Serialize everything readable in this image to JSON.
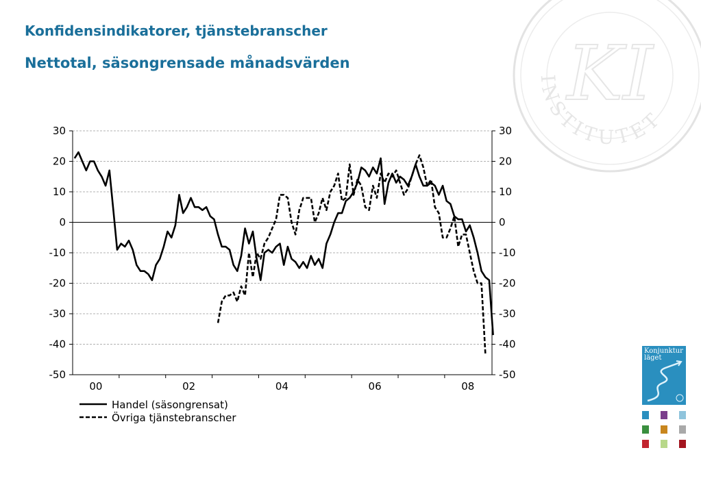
{
  "header": {
    "title": "Konfidensindikatorer, tjänstebranscher",
    "subtitle": "Nettotal, säsongrensade månadsvärden"
  },
  "watermark": {
    "text": "INSTITUTET",
    "monogram": "KI"
  },
  "badge": {
    "title": "Konjunktur läget",
    "color": "#2a8fbf",
    "swatch_colors": [
      "#2a8fbf",
      "#7b3f8c",
      "#8fc4dc",
      "#3a8f3f",
      "#c8861e",
      "#a9a9a9",
      "#c2242f",
      "#b8d88a",
      "#a3151f"
    ]
  },
  "chart_data": {
    "type": "line",
    "title": "",
    "xlabel": "",
    "ylabel": "",
    "ylim": [
      -50,
      30
    ],
    "yticks": [
      30,
      20,
      10,
      0,
      -10,
      -20,
      -30,
      -40,
      -50
    ],
    "x_tick_labels": [
      "00",
      "02",
      "04",
      "06",
      "08"
    ],
    "x_start": "2000-01",
    "grid": true,
    "legend_position": "bottom-left",
    "series": [
      {
        "name": "Handel (säsongrensat)",
        "style": "solid",
        "start": "2000-01",
        "values": [
          21,
          23,
          20,
          17,
          20,
          20,
          17,
          15,
          12,
          17,
          4,
          -9,
          -7,
          -8,
          -6,
          -9,
          -14,
          -16,
          -16,
          -17,
          -19,
          -14,
          -12,
          -8,
          -3,
          -5,
          -1,
          9,
          3,
          5,
          8,
          5,
          5,
          4,
          5,
          2,
          1,
          -4,
          -8,
          -8,
          -9,
          -14,
          -16,
          -11,
          -2,
          -7,
          -3,
          -12,
          -19,
          -10,
          -9,
          -10,
          -8,
          -7,
          -14,
          -8,
          -12,
          -13,
          -15,
          -13,
          -15,
          -11,
          -14,
          -12,
          -15,
          -7,
          -4,
          0,
          3,
          3,
          7,
          8,
          10,
          13,
          18,
          17,
          15,
          18,
          16,
          21,
          6,
          13,
          16,
          13,
          15,
          14,
          12,
          15,
          19,
          15,
          12,
          12,
          13,
          12,
          9,
          12,
          7,
          6,
          2,
          1,
          1,
          -3,
          -1,
          -5,
          -10,
          -16,
          -18,
          -19,
          -37
        ]
      },
      {
        "name": "Övriga tjänstebranscher",
        "style": "dashed",
        "start": "2003-02",
        "values": [
          -33,
          -26,
          -24,
          -24,
          -23,
          -26,
          -21,
          -24,
          -10,
          -18,
          -10,
          -12,
          -7,
          -5,
          -2,
          1,
          9,
          9,
          8,
          0,
          -4,
          4,
          8,
          8,
          8,
          0,
          3,
          8,
          4,
          10,
          12,
          16,
          7,
          8,
          19,
          9,
          14,
          12,
          5,
          4,
          12,
          8,
          16,
          13,
          16,
          15,
          17,
          13,
          9,
          11,
          15,
          19,
          22,
          18,
          12,
          14,
          5,
          3,
          -5,
          -5,
          -2,
          2,
          -8,
          -4,
          -4,
          -10,
          -16,
          -20,
          -20,
          -43
        ]
      }
    ]
  }
}
